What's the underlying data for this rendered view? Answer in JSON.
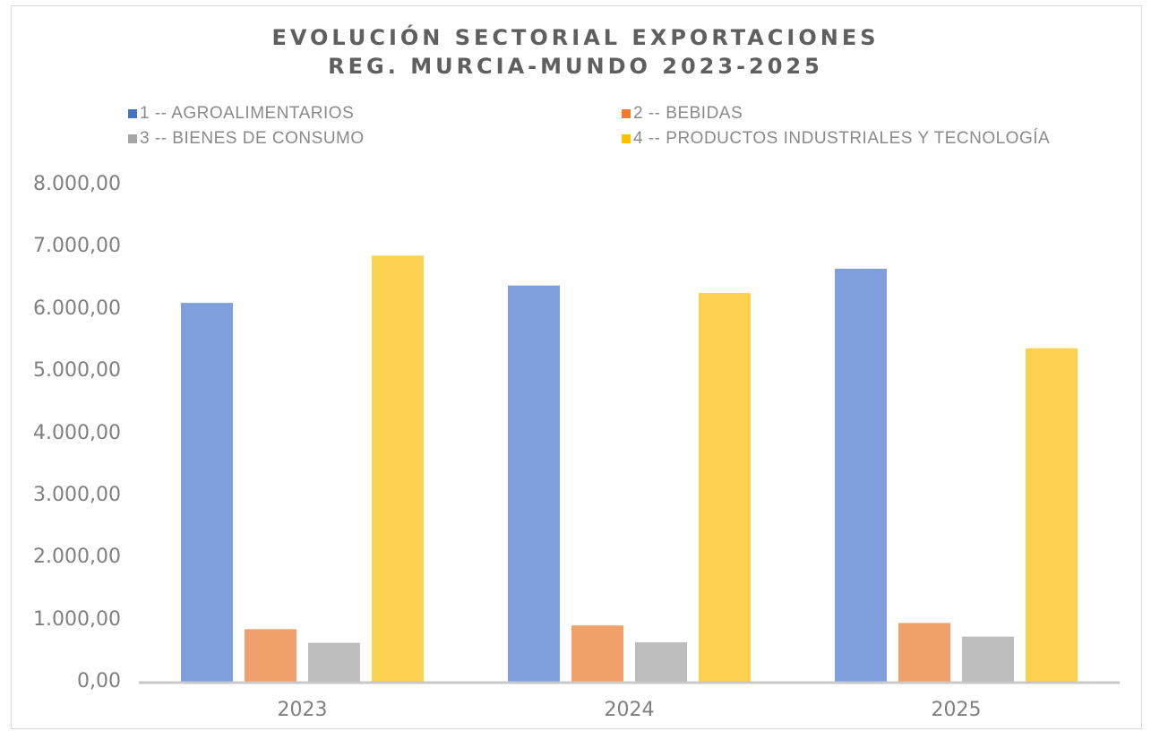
{
  "chart_data": {
    "type": "bar",
    "title_lines": [
      "EVOLUCIÓN SECTORIAL EXPORTACIONES",
      "REG. MURCIA-MUNDO 2023-2025"
    ],
    "categories": [
      "2023",
      "2024",
      "2025"
    ],
    "series": [
      {
        "name": "1 -- AGROALIMENTARIOS",
        "color": "#7f9fdc",
        "values": [
          6110,
          6390,
          6660
        ]
      },
      {
        "name": "2 -- BEBIDAS",
        "color": "#f0a06a",
        "values": [
          860,
          920,
          960
        ]
      },
      {
        "name": "3 -- BIENES DE CONSUMO",
        "color": "#bdbdbd",
        "values": [
          640,
          650,
          740
        ]
      },
      {
        "name": "4 -- PRODUCTOS INDUSTRIALES Y TECNOLOGÍA",
        "color": "#fcd14f",
        "values": [
          6870,
          6270,
          5380
        ]
      }
    ],
    "ylim": [
      0,
      8000
    ],
    "yticks": [
      "0,00",
      "1.000,00",
      "2.000,00",
      "3.000,00",
      "4.000,00",
      "5.000,00",
      "6.000,00",
      "7.000,00",
      "8.000,00"
    ],
    "grid": false,
    "legend_position": "top"
  }
}
